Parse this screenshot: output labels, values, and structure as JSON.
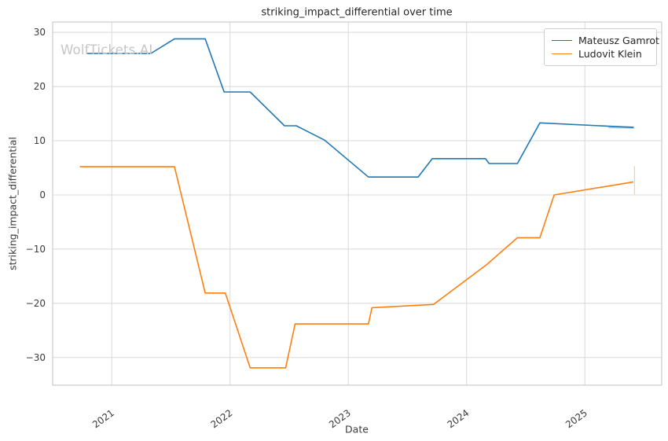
{
  "figure": {
    "title": "striking_impact_differential over time",
    "watermark": "WolfTickets.AI"
  },
  "legend": {
    "items": [
      {
        "label": "Mateusz Gamrot",
        "color": "#1f77b4"
      },
      {
        "label": "Ludovit Klein",
        "color": "#ff7f0e"
      }
    ]
  },
  "chart_data": {
    "type": "line",
    "title": "striking_impact_differential over time",
    "xlabel": "Date",
    "ylabel": "striking_impact_differential",
    "x_unit": "decimal_year",
    "xlim": [
      2020.5,
      2025.65
    ],
    "ylim": [
      -35.1,
      31.9
    ],
    "x_ticks": [
      2021,
      2022,
      2023,
      2024,
      2025
    ],
    "y_ticks": [
      -30,
      -20,
      -10,
      0,
      10,
      20,
      30
    ],
    "grid": true,
    "grid_color": "#d8d8d8",
    "spine_color": "#c2c2c2",
    "tick_label_color": "#3a3a3a",
    "legend_position": "upper right",
    "series": [
      {
        "name": "Mateusz Gamrot",
        "color": "#1f77b4",
        "points": [
          [
            2020.79,
            26.1
          ],
          [
            2021.33,
            26.1
          ],
          [
            2021.53,
            28.8
          ],
          [
            2021.79,
            28.8
          ],
          [
            2021.95,
            19.0
          ],
          [
            2022.17,
            19.0
          ],
          [
            2022.46,
            12.75
          ],
          [
            2022.56,
            12.75
          ],
          [
            2022.8,
            10.1
          ],
          [
            2023.17,
            3.3
          ],
          [
            2023.59,
            3.3
          ],
          [
            2023.71,
            6.7
          ],
          [
            2024.16,
            6.7
          ],
          [
            2024.19,
            5.8
          ],
          [
            2024.43,
            5.8
          ],
          [
            2024.62,
            13.3
          ],
          [
            2025.41,
            12.45
          ]
        ]
      },
      {
        "name": "Ludovit Klein",
        "color": "#ff7f0e",
        "points": [
          [
            2020.73,
            5.2
          ],
          [
            2021.53,
            5.2
          ],
          [
            2021.79,
            -18.1
          ],
          [
            2021.96,
            -18.1
          ],
          [
            2022.17,
            -31.9
          ],
          [
            2022.47,
            -31.9
          ],
          [
            2022.55,
            -23.8
          ],
          [
            2023.17,
            -23.8
          ],
          [
            2023.2,
            -20.8
          ],
          [
            2023.72,
            -20.2
          ],
          [
            2024.17,
            -12.85
          ],
          [
            2024.43,
            -7.9
          ],
          [
            2024.62,
            -7.9
          ],
          [
            2024.74,
            0.0
          ],
          [
            2025.41,
            2.4
          ]
        ]
      }
    ],
    "annotations": [
      {
        "type": "segment",
        "x1": 2025.2,
        "y1": 12.52,
        "x2": 2025.42,
        "y2": 12.43,
        "color": "#1f77b4",
        "opacity": 0.35,
        "width": 3
      },
      {
        "type": "vline_segment",
        "x": 2025.42,
        "y1": 0.1,
        "y2": 5.3,
        "color": "#ff7f0e",
        "opacity": 0.4,
        "width": 1.2
      }
    ]
  }
}
